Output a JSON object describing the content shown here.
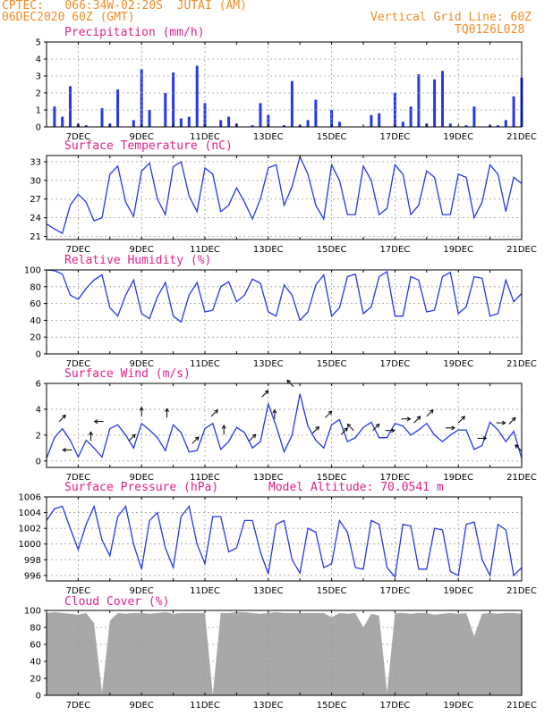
{
  "header": {
    "station_line": "CPTEC:   066:34W-02:20S  JUTAI (AM)",
    "date_line": "06DEC2020 60Z (GMT)",
    "grid_line": "Vertical Grid Line: 60Z",
    "model_code": "TQ0126L028"
  },
  "colors": {
    "header": "#f08c28",
    "title": "#e0208c",
    "series": "#2638e6",
    "cloud": "#a8a8a8",
    "grid": "#9a9a9a",
    "frame": "#000000"
  },
  "x_axis": {
    "start_day": 6,
    "end_day": 21,
    "labels": [
      {
        "day": 7,
        "text": "7DEC"
      },
      {
        "day": 9,
        "text": "9DEC"
      },
      {
        "day": 11,
        "text": "11DEC"
      },
      {
        "day": 13,
        "text": "13DEC"
      },
      {
        "day": 15,
        "text": "15DEC"
      },
      {
        "day": 17,
        "text": "17DEC"
      },
      {
        "day": 19,
        "text": "19DEC"
      },
      {
        "day": 21,
        "text": "21DEC"
      }
    ]
  },
  "chart_data": [
    {
      "id": "precipitation",
      "type": "bar",
      "title": "Precipitation (mm/h)",
      "ylim": [
        0,
        5
      ],
      "yticks": [
        0,
        1,
        2,
        3,
        4,
        5
      ],
      "grid": true,
      "x": [
        6.25,
        6.5,
        6.75,
        7.0,
        7.25,
        7.5,
        7.75,
        8.0,
        8.25,
        8.5,
        8.75,
        9.0,
        9.25,
        9.5,
        9.75,
        10.0,
        10.25,
        10.5,
        10.75,
        11.0,
        11.25,
        11.5,
        11.75,
        12.0,
        12.25,
        12.5,
        12.75,
        13.0,
        13.25,
        13.5,
        13.75,
        14.0,
        14.25,
        14.5,
        14.75,
        15.0,
        15.25,
        15.5,
        15.75,
        16.0,
        16.25,
        16.5,
        16.75,
        17.0,
        17.25,
        17.5,
        17.75,
        18.0,
        18.25,
        18.5,
        18.75,
        19.0,
        19.25,
        19.5,
        19.75,
        20.0,
        20.25,
        20.5,
        20.75,
        21.0
      ],
      "values": [
        1.2,
        0.6,
        2.4,
        0.2,
        0.1,
        0,
        1.1,
        0.2,
        2.2,
        0,
        0.4,
        3.4,
        1.0,
        0,
        2.0,
        3.2,
        0.5,
        0.6,
        3.6,
        1.4,
        0,
        0.4,
        0.6,
        0.2,
        0,
        0.1,
        1.4,
        0.7,
        0,
        0.1,
        2.7,
        0.1,
        0.4,
        1.6,
        0,
        1.0,
        0.3,
        0,
        0,
        0,
        0.7,
        0.8,
        0,
        2.0,
        0.3,
        1.2,
        3.1,
        0.2,
        2.8,
        3.3,
        0.2,
        0,
        0.1,
        1.2,
        0,
        0.1,
        0.1,
        0.4,
        1.8,
        2.9
      ],
      "units": "mm/h"
    },
    {
      "id": "temperature",
      "type": "line",
      "title": "Surface Temperature (nC)",
      "ylim": [
        20.5,
        34
      ],
      "yticks": [
        21,
        24,
        27,
        30,
        33
      ],
      "grid": true,
      "x": [
        6.0,
        6.25,
        6.5,
        6.75,
        7.0,
        7.25,
        7.5,
        7.75,
        8.0,
        8.25,
        8.5,
        8.75,
        9.0,
        9.25,
        9.5,
        9.75,
        10.0,
        10.25,
        10.5,
        10.75,
        11.0,
        11.25,
        11.5,
        11.75,
        12.0,
        12.25,
        12.5,
        12.75,
        13.0,
        13.25,
        13.5,
        13.75,
        14.0,
        14.25,
        14.5,
        14.75,
        15.0,
        15.25,
        15.5,
        15.75,
        16.0,
        16.25,
        16.5,
        16.75,
        17.0,
        17.25,
        17.5,
        17.75,
        18.0,
        18.25,
        18.5,
        18.75,
        19.0,
        19.25,
        19.5,
        19.75,
        20.0,
        20.25,
        20.5,
        20.75,
        21.0
      ],
      "values": [
        23.0,
        22.2,
        21.5,
        26.0,
        27.8,
        26.5,
        23.5,
        24.0,
        31.0,
        32.3,
        26.5,
        24.2,
        31.5,
        32.8,
        27.0,
        24.5,
        32.2,
        33.0,
        27.5,
        25.0,
        32.0,
        31.0,
        25.0,
        26.0,
        28.8,
        26.5,
        23.8,
        27.0,
        32.0,
        32.5,
        26.0,
        29.0,
        33.8,
        31.0,
        26.0,
        23.8,
        32.5,
        30.0,
        24.5,
        24.5,
        32.3,
        30.0,
        24.5,
        25.5,
        32.5,
        31.0,
        24.5,
        26.0,
        31.5,
        30.5,
        24.5,
        24.5,
        31.0,
        30.5,
        24.0,
        26.5,
        32.5,
        31.0,
        25.0,
        30.5,
        29.5
      ],
      "units": "C"
    },
    {
      "id": "humidity",
      "type": "line",
      "title": "Relative Humidity (%)",
      "ylim": [
        0,
        100
      ],
      "yticks": [
        0,
        20,
        40,
        60,
        80,
        100
      ],
      "grid": true,
      "x": [
        6.0,
        6.25,
        6.5,
        6.75,
        7.0,
        7.25,
        7.5,
        7.75,
        8.0,
        8.25,
        8.5,
        8.75,
        9.0,
        9.25,
        9.5,
        9.75,
        10.0,
        10.25,
        10.5,
        10.75,
        11.0,
        11.25,
        11.5,
        11.75,
        12.0,
        12.25,
        12.5,
        12.75,
        13.0,
        13.25,
        13.5,
        13.75,
        14.0,
        14.25,
        14.5,
        14.75,
        15.0,
        15.25,
        15.5,
        15.75,
        16.0,
        16.25,
        16.5,
        16.75,
        17.0,
        17.25,
        17.5,
        17.75,
        18.0,
        18.25,
        18.5,
        18.75,
        19.0,
        19.25,
        19.5,
        19.75,
        20.0,
        20.25,
        20.5,
        20.75,
        21.0
      ],
      "values": [
        100,
        99,
        95,
        70,
        65,
        78,
        88,
        94,
        55,
        45,
        70,
        88,
        48,
        42,
        68,
        85,
        45,
        38,
        70,
        85,
        50,
        52,
        80,
        86,
        62,
        70,
        89,
        84,
        50,
        45,
        82,
        70,
        40,
        50,
        82,
        94,
        45,
        55,
        92,
        95,
        48,
        56,
        92,
        98,
        45,
        45,
        92,
        88,
        50,
        52,
        92,
        97,
        48,
        56,
        92,
        90,
        45,
        48,
        88,
        62,
        72
      ],
      "units": "%"
    },
    {
      "id": "wind",
      "type": "line",
      "title": "Surface Wind (m/s)",
      "ylim": [
        -0.5,
        6
      ],
      "yticks": [
        0,
        2,
        4,
        6
      ],
      "grid": true,
      "x": [
        6.0,
        6.25,
        6.5,
        6.75,
        7.0,
        7.25,
        7.5,
        7.75,
        8.0,
        8.25,
        8.5,
        8.75,
        9.0,
        9.25,
        9.5,
        9.75,
        10.0,
        10.25,
        10.5,
        10.75,
        11.0,
        11.25,
        11.5,
        11.75,
        12.0,
        12.25,
        12.5,
        12.75,
        13.0,
        13.25,
        13.5,
        13.75,
        14.0,
        14.25,
        14.5,
        14.75,
        15.0,
        15.25,
        15.5,
        15.75,
        16.0,
        16.25,
        16.5,
        16.75,
        17.0,
        17.25,
        17.5,
        17.75,
        18.0,
        18.25,
        18.5,
        18.75,
        19.0,
        19.25,
        19.5,
        19.75,
        20.0,
        20.25,
        20.5,
        20.75,
        21.0
      ],
      "values": [
        0.2,
        1.8,
        2.5,
        1.6,
        0.3,
        1.6,
        1.0,
        0.3,
        2.5,
        2.8,
        2.0,
        1.0,
        2.9,
        2.4,
        1.8,
        0.8,
        2.8,
        2.2,
        0.7,
        0.8,
        2.5,
        2.9,
        0.9,
        1.5,
        2.6,
        2.2,
        1.0,
        1.5,
        4.4,
        2.7,
        0.7,
        2.0,
        5.2,
        2.7,
        1.6,
        1.0,
        2.8,
        3.2,
        1.5,
        1.8,
        2.6,
        3.0,
        1.8,
        1.8,
        2.9,
        2.7,
        2.0,
        2.4,
        2.9,
        2.0,
        1.5,
        2.0,
        2.4,
        2.4,
        0.9,
        1.2,
        3.0,
        2.4,
        1.5,
        2.3,
        0.2
      ],
      "arrows": [
        [
          6.4,
          1
        ],
        [
          6.8,
          4
        ],
        [
          7.4,
          2
        ],
        [
          7.8,
          4
        ],
        [
          8.6,
          1
        ],
        [
          9.0,
          2
        ],
        [
          9.8,
          2
        ],
        [
          10.6,
          1
        ],
        [
          11.2,
          1
        ],
        [
          11.6,
          2
        ],
        [
          12.4,
          1
        ],
        [
          12.8,
          1
        ],
        [
          13.2,
          2
        ],
        [
          13.8,
          3
        ],
        [
          14.4,
          1
        ],
        [
          14.8,
          1
        ],
        [
          15.3,
          1
        ],
        [
          15.7,
          3
        ],
        [
          16.3,
          1
        ],
        [
          16.7,
          0
        ],
        [
          17.2,
          0
        ],
        [
          17.6,
          1
        ],
        [
          18.0,
          1
        ],
        [
          18.6,
          0
        ],
        [
          19.0,
          1
        ],
        [
          19.6,
          0
        ],
        [
          20.2,
          0
        ],
        [
          20.6,
          1
        ],
        [
          21.0,
          3
        ]
      ],
      "units": "m/s"
    },
    {
      "id": "pressure",
      "type": "line",
      "title": "Surface Pressure (hPa)",
      "annotation": "Model Altitude: 70.0541 m",
      "ylim": [
        995.3,
        1006
      ],
      "yticks": [
        996,
        998,
        1000,
        1002,
        1004,
        1006
      ],
      "grid": true,
      "x": [
        6.0,
        6.25,
        6.5,
        6.75,
        7.0,
        7.25,
        7.5,
        7.75,
        8.0,
        8.25,
        8.5,
        8.75,
        9.0,
        9.25,
        9.5,
        9.75,
        10.0,
        10.25,
        10.5,
        10.75,
        11.0,
        11.25,
        11.5,
        11.75,
        12.0,
        12.25,
        12.5,
        12.75,
        13.0,
        13.25,
        13.5,
        13.75,
        14.0,
        14.25,
        14.5,
        14.75,
        15.0,
        15.25,
        15.5,
        15.75,
        16.0,
        16.25,
        16.5,
        16.75,
        17.0,
        17.25,
        17.5,
        17.75,
        18.0,
        18.25,
        18.5,
        18.75,
        19.0,
        19.25,
        19.5,
        19.75,
        20.0,
        20.25,
        20.5,
        20.75,
        21.0
      ],
      "values": [
        1003.0,
        1004.5,
        1004.8,
        1002.0,
        999.3,
        1002.5,
        1004.8,
        1000.5,
        998.5,
        1003.5,
        1004.8,
        1000.0,
        996.8,
        1003.0,
        1004.0,
        999.5,
        997.0,
        1003.5,
        1004.8,
        1000.0,
        997.5,
        1003.5,
        1003.5,
        999.0,
        999.5,
        1003.0,
        1003.0,
        999.0,
        996.2,
        1002.5,
        1003.0,
        998.0,
        996.3,
        1002.0,
        1001.5,
        997.0,
        997.5,
        1003.0,
        1001.5,
        997.0,
        996.8,
        1003.0,
        1002.5,
        997.0,
        995.8,
        1002.5,
        1002.3,
        996.8,
        996.8,
        1002.0,
        1001.8,
        996.5,
        996.0,
        1002.5,
        1002.8,
        998.0,
        996.0,
        1002.5,
        1001.8,
        996.0,
        997.0
      ],
      "units": "hPa"
    },
    {
      "id": "cloud",
      "type": "area",
      "title": "Cloud Cover (%)",
      "ylim": [
        0,
        100
      ],
      "yticks": [
        0,
        20,
        40,
        60,
        80,
        100
      ],
      "grid": true,
      "x": [
        6.0,
        6.25,
        6.5,
        6.75,
        7.0,
        7.25,
        7.5,
        7.75,
        8.0,
        8.25,
        8.5,
        8.75,
        9.0,
        9.25,
        9.5,
        9.75,
        10.0,
        10.25,
        10.5,
        10.75,
        11.0,
        11.25,
        11.5,
        11.75,
        12.0,
        12.25,
        12.5,
        12.75,
        13.0,
        13.25,
        13.5,
        13.75,
        14.0,
        14.25,
        14.5,
        14.75,
        15.0,
        15.25,
        15.5,
        15.75,
        16.0,
        16.25,
        16.5,
        16.75,
        17.0,
        17.25,
        17.5,
        17.75,
        18.0,
        18.25,
        18.5,
        18.75,
        19.0,
        19.25,
        19.5,
        19.75,
        20.0,
        20.25,
        20.5,
        20.75,
        21.0
      ],
      "values": [
        97,
        98,
        97,
        96,
        95,
        97,
        85,
        3,
        88,
        97,
        96,
        97,
        97,
        96,
        97,
        98,
        96,
        97,
        97,
        97,
        97,
        1,
        97,
        97,
        98,
        98,
        97,
        96,
        97,
        98,
        97,
        97,
        97,
        97,
        97,
        97,
        92,
        97,
        96,
        97,
        80,
        96,
        94,
        3,
        97,
        97,
        96,
        97,
        97,
        95,
        96,
        97,
        96,
        97,
        70,
        96,
        97,
        96,
        97,
        97,
        96
      ],
      "units": "%"
    }
  ]
}
